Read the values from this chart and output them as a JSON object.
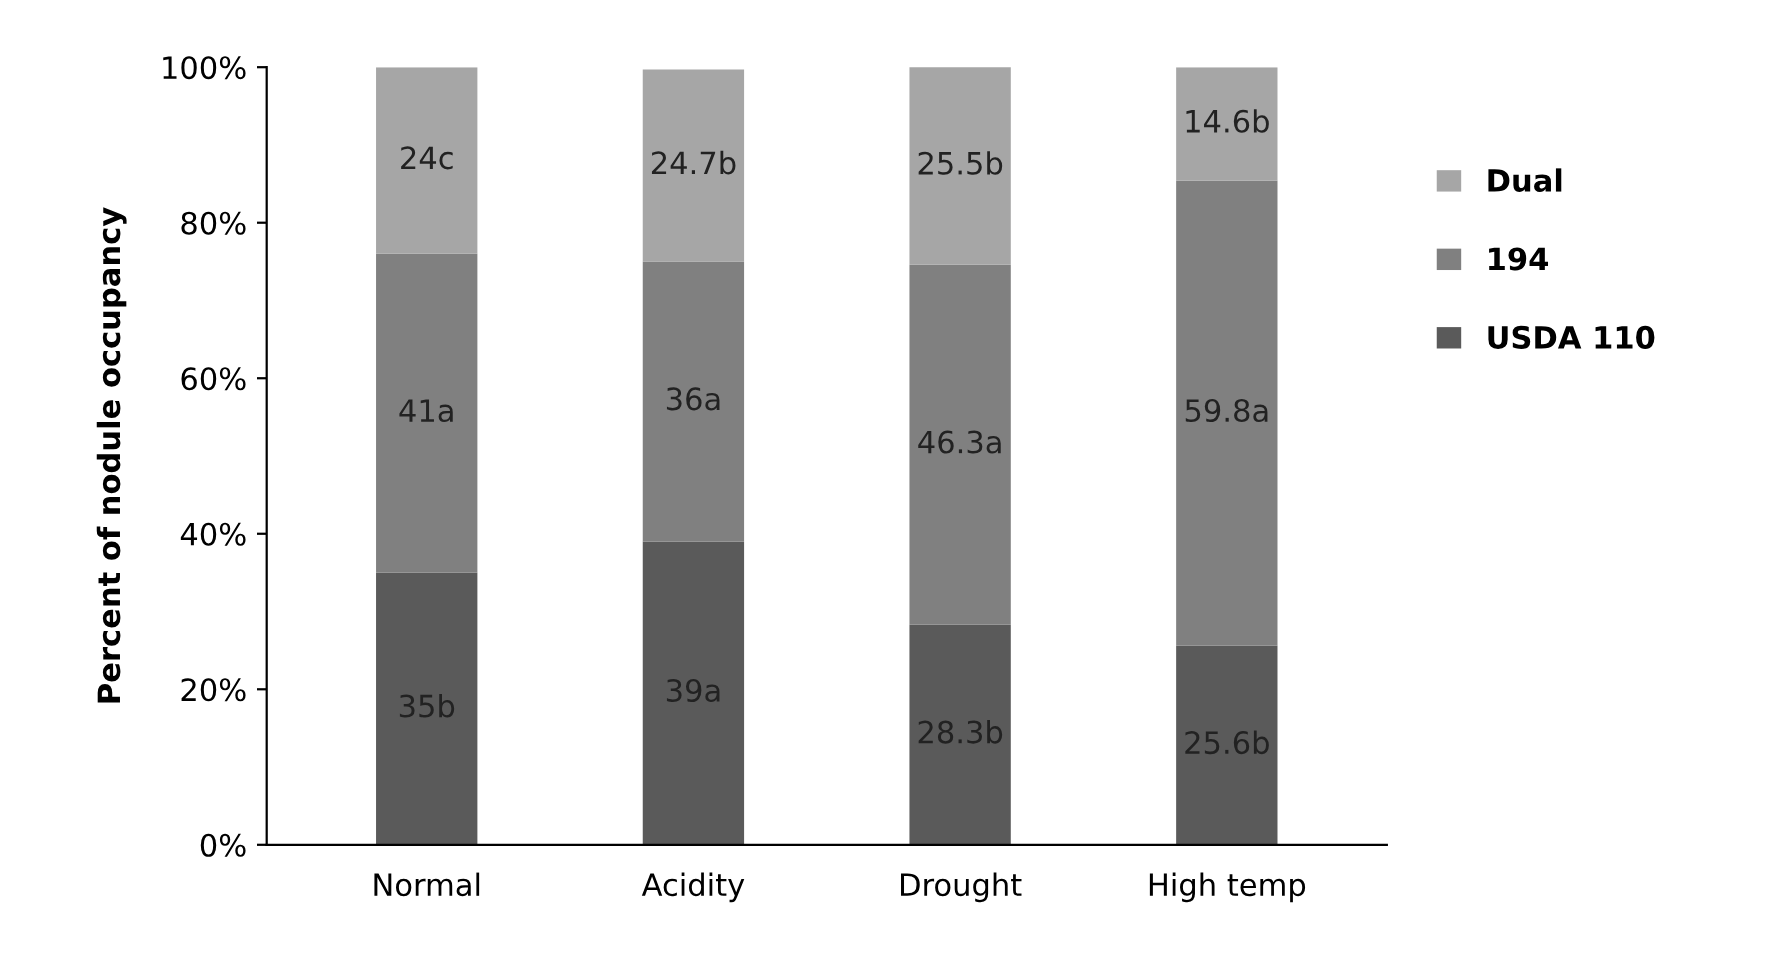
{
  "chart_data": {
    "type": "bar",
    "stacked": true,
    "ylabel": "Percent of nodule occupancy",
    "categories": [
      "Normal",
      "Acidity",
      "Drought",
      "High temp"
    ],
    "series": [
      {
        "name": "USDA 110",
        "color": "#5a5a5a",
        "values": [
          35,
          39,
          28.3,
          25.6
        ],
        "value_labels": [
          "35b",
          "39a",
          "28.3b",
          "25.6b"
        ]
      },
      {
        "name": "194",
        "color": "#808080",
        "values": [
          41,
          36,
          46.3,
          59.8
        ],
        "value_labels": [
          "41a",
          "36a",
          "46.3a",
          "59.8a"
        ]
      },
      {
        "name": "Dual",
        "color": "#a6a6a6",
        "values": [
          24,
          24.7,
          25.5,
          14.6
        ],
        "value_labels": [
          "24c",
          "24.7b",
          "25.5b",
          "14.6b"
        ]
      }
    ],
    "ylim": [
      0,
      100
    ],
    "yticks": [
      {
        "value": 0,
        "label": "0%"
      },
      {
        "value": 20,
        "label": "20%"
      },
      {
        "value": 40,
        "label": "40%"
      },
      {
        "value": 60,
        "label": "60%"
      },
      {
        "value": 80,
        "label": "80%"
      },
      {
        "value": 100,
        "label": "100%"
      }
    ],
    "grid": false,
    "legend": "right"
  }
}
